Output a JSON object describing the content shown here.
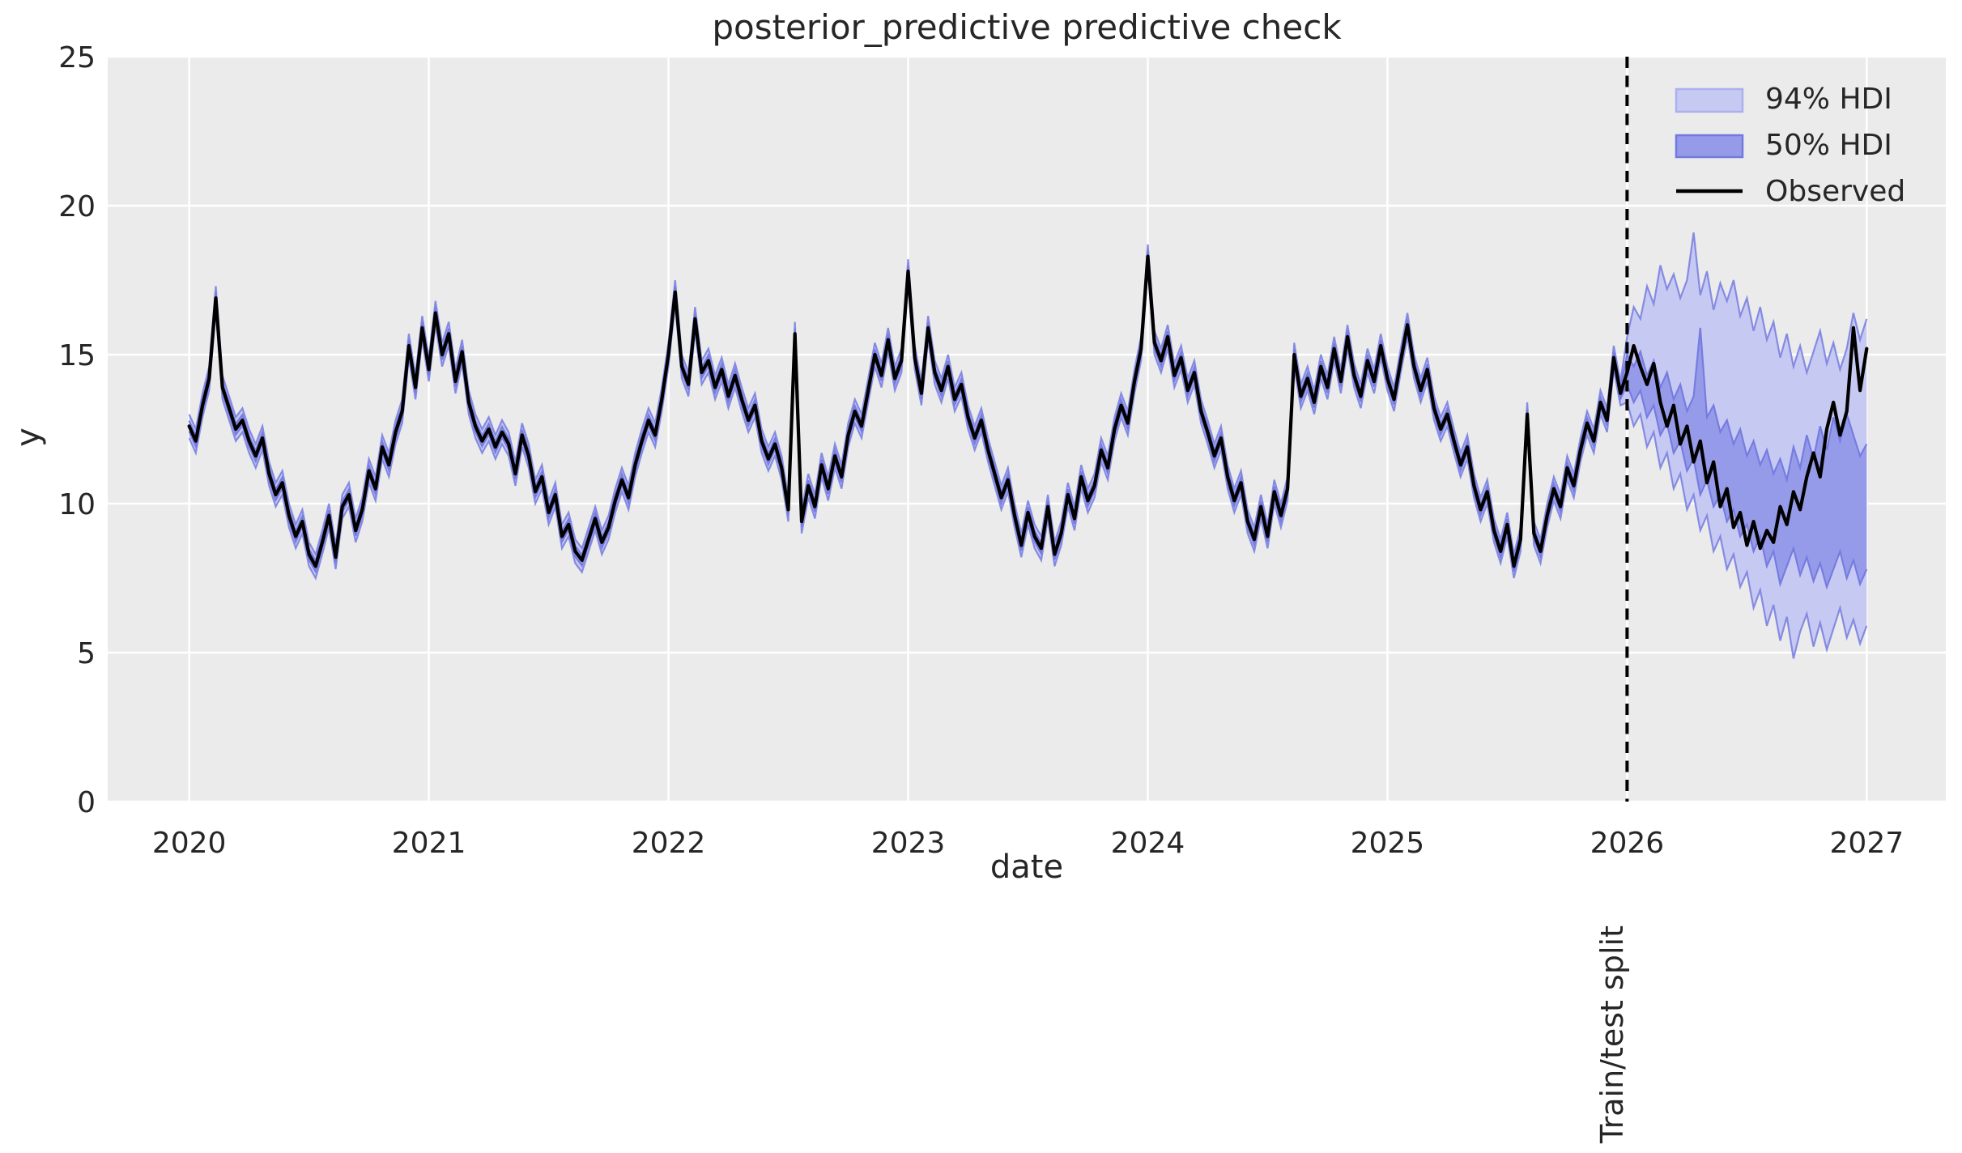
{
  "figure": {
    "title": "posterior_predictive predictive check",
    "xlabel": "date",
    "ylabel": "y",
    "split_label": "Train/test split",
    "legend": [
      {
        "label": "94% HDI",
        "type": "band",
        "fill": "#c6c9f1",
        "border": "#abb0ee"
      },
      {
        "label": "50% HDI",
        "type": "band",
        "fill": "#969be9",
        "border": "#7379de"
      },
      {
        "label": "Observed",
        "type": "line",
        "color": "#000000"
      }
    ]
  },
  "chart_data": {
    "type": "line",
    "title": "posterior_predictive predictive check",
    "xlabel": "date",
    "ylabel": "y",
    "xlim": [
      2019.66,
      2027.33
    ],
    "ylim": [
      0,
      25
    ],
    "xticks": [
      2020,
      2021,
      2022,
      2023,
      2024,
      2025,
      2026,
      2027
    ],
    "yticks": [
      0,
      5,
      10,
      15,
      20,
      25
    ],
    "grid": true,
    "legend_position": "upper right",
    "x_start": 2020,
    "x_step_per_year": 36,
    "split_x": 2026,
    "observed": [
      12.6,
      12.1,
      13.3,
      14.2,
      16.9,
      13.9,
      13.2,
      12.5,
      12.8,
      12.1,
      11.6,
      12.2,
      11.0,
      10.3,
      10.7,
      9.6,
      8.9,
      9.4,
      8.3,
      7.9,
      8.7,
      9.6,
      8.2,
      9.9,
      10.3,
      9.1,
      9.8,
      11.1,
      10.5,
      11.9,
      11.3,
      12.4,
      13.1,
      15.3,
      13.9,
      15.9,
      14.5,
      16.4,
      15.0,
      15.7,
      14.1,
      15.1,
      13.4,
      12.6,
      12.1,
      12.5,
      11.9,
      12.4,
      12.0,
      11.0,
      12.3,
      11.6,
      10.4,
      10.9,
      9.7,
      10.3,
      8.9,
      9.3,
      8.4,
      8.1,
      8.8,
      9.5,
      8.7,
      9.2,
      10.1,
      10.8,
      10.2,
      11.3,
      12.1,
      12.8,
      12.3,
      13.5,
      15.0,
      17.1,
      14.6,
      14.0,
      16.2,
      14.4,
      14.8,
      13.9,
      14.5,
      13.6,
      14.3,
      13.5,
      12.8,
      13.3,
      12.1,
      11.5,
      12.0,
      11.2,
      9.8,
      15.7,
      9.4,
      10.6,
      9.9,
      11.3,
      10.5,
      11.6,
      10.9,
      12.3,
      13.1,
      12.6,
      13.8,
      15.0,
      14.3,
      15.5,
      14.2,
      14.8,
      17.8,
      14.9,
      13.7,
      15.9,
      14.4,
      13.8,
      14.6,
      13.5,
      14.0,
      12.9,
      12.2,
      12.8,
      11.8,
      11.0,
      10.2,
      10.8,
      9.6,
      8.6,
      9.7,
      8.9,
      8.5,
      9.9,
      8.3,
      9.0,
      10.3,
      9.5,
      10.9,
      10.1,
      10.6,
      11.8,
      11.2,
      12.5,
      13.3,
      12.7,
      14.1,
      15.2,
      18.3,
      15.4,
      14.8,
      15.6,
      14.3,
      14.9,
      13.8,
      14.4,
      13.1,
      12.4,
      11.6,
      12.2,
      10.9,
      10.1,
      10.7,
      9.4,
      8.8,
      9.9,
      8.9,
      10.4,
      9.6,
      10.5,
      15.0,
      13.6,
      14.2,
      13.4,
      14.6,
      13.9,
      15.2,
      14.1,
      15.6,
      14.3,
      13.6,
      14.8,
      14.1,
      15.3,
      14.2,
      13.5,
      14.8,
      16.0,
      14.6,
      13.8,
      14.5,
      13.2,
      12.5,
      13.0,
      12.1,
      11.3,
      11.9,
      10.6,
      9.8,
      10.4,
      9.1,
      8.4,
      9.3,
      7.9,
      8.8,
      13.0,
      9.0,
      8.4,
      9.6,
      10.5,
      9.9,
      11.2,
      10.6,
      11.8,
      12.7,
      12.1,
      13.4,
      12.8,
      14.9,
      13.7,
      14.4,
      15.3,
      14.6,
      14.0,
      14.7,
      13.4,
      12.6,
      13.3,
      12.0,
      12.6,
      11.4,
      12.1,
      10.7,
      11.4,
      9.9,
      10.5,
      9.2,
      9.7,
      8.6,
      9.4,
      8.5,
      9.1,
      8.7,
      9.9,
      9.3,
      10.4,
      9.8,
      10.9,
      11.7,
      10.9,
      12.5,
      13.4,
      12.3,
      13.1,
      15.9,
      13.8,
      15.2
    ],
    "train_hdi94_width": 0.8,
    "train_hdi50_width": 0.36,
    "forecast": {
      "x_start": 2026,
      "hdi94_hi": [
        15.6,
        16.6,
        16.2,
        17.3,
        16.7,
        18.0,
        17.2,
        17.7,
        16.9,
        17.5,
        19.1,
        17.0,
        17.8,
        16.5,
        17.4,
        16.8,
        17.5,
        16.3,
        16.9,
        15.8,
        16.6,
        15.5,
        16.1,
        14.9,
        15.7,
        14.6,
        15.3,
        14.4,
        15.1,
        15.8,
        14.7,
        15.4,
        14.5,
        15.2,
        16.4,
        15.5,
        16.2
      ],
      "hdi94_lo": [
        13.4,
        12.6,
        13.0,
        11.9,
        12.4,
        11.2,
        11.7,
        10.5,
        11.0,
        9.8,
        10.3,
        9.1,
        9.6,
        8.4,
        8.9,
        7.8,
        8.3,
        7.2,
        7.7,
        6.5,
        7.1,
        5.9,
        6.6,
        5.4,
        6.2,
        4.8,
        5.7,
        6.3,
        5.2,
        6.0,
        5.1,
        5.8,
        6.5,
        5.5,
        6.1,
        5.3,
        5.9
      ],
      "hdi50_hi": [
        15.0,
        14.6,
        15.1,
        14.3,
        14.8,
        13.9,
        14.4,
        13.5,
        14.0,
        13.1,
        13.6,
        15.9,
        12.9,
        13.3,
        12.4,
        12.8,
        12.0,
        12.5,
        11.6,
        12.1,
        11.3,
        11.8,
        11.0,
        11.5,
        10.8,
        11.9,
        11.2,
        12.3,
        11.5,
        12.6,
        11.8,
        12.9,
        12.1,
        13.0,
        12.3,
        11.6,
        12.0
      ],
      "hdi50_lo": [
        14.0,
        13.4,
        13.8,
        12.9,
        13.3,
        12.3,
        12.7,
        11.7,
        12.1,
        11.1,
        11.5,
        10.3,
        10.8,
        9.9,
        10.3,
        9.4,
        9.8,
        8.9,
        9.3,
        8.4,
        8.9,
        7.9,
        8.4,
        7.3,
        7.9,
        8.5,
        7.6,
        8.2,
        7.4,
        8.0,
        7.2,
        7.8,
        8.4,
        7.5,
        8.1,
        7.3,
        7.8
      ]
    },
    "colors": {
      "figure_background": "#ffffff",
      "axes_background": "#ebebeb",
      "grid": "#ffffff",
      "observed_line": "#000000",
      "hdi94_fill": "#c6c9f1",
      "hdi50_fill": "#969be9",
      "hdi_edge": "#767ce0",
      "split_line": "#000000",
      "text": "#262626"
    }
  }
}
